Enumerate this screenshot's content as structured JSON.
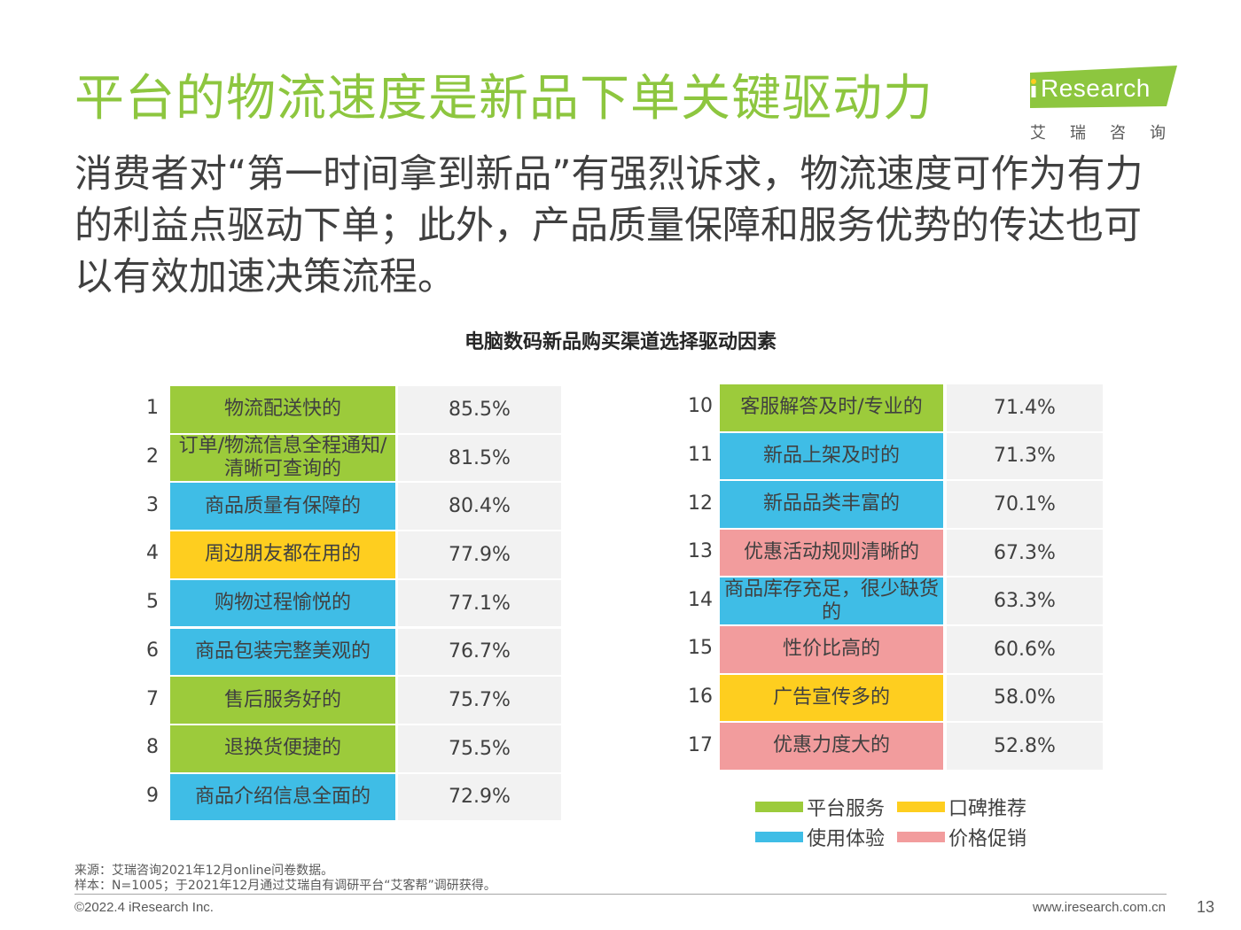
{
  "slide": {
    "title": "平台的物流速度是新品下单关键驱动力",
    "subtitle": "消费者对“第一时间拿到新品”有强烈诉求，物流速度可作为有力的利益点驱动下单；此外，产品质量保障和服务优势的传达也可以有效加速决策流程。",
    "logo_text": "Research",
    "logo_cn": "艾瑞咨询"
  },
  "colors": {
    "title_green": "#8dc63f",
    "platform_service": "#9ccb3b",
    "word_of_mouth": "#fece1f",
    "user_experience": "#3fbde6",
    "price_promotion": "#f29c9d",
    "value_cell": "#f2f2f2"
  },
  "chart_data": {
    "type": "table",
    "title": "电脑数码新品购买渠道选择驱动因素",
    "rows": [
      {
        "rank": "1",
        "label": "物流配送快的",
        "value": "85.5%",
        "group": "platform_service"
      },
      {
        "rank": "2",
        "label": "订单/物流信息全程通知/清晰可查询的",
        "value": "81.5%",
        "group": "platform_service"
      },
      {
        "rank": "3",
        "label": "商品质量有保障的",
        "value": "80.4%",
        "group": "user_experience"
      },
      {
        "rank": "4",
        "label": "周边朋友都在用的",
        "value": "77.9%",
        "group": "word_of_mouth"
      },
      {
        "rank": "5",
        "label": "购物过程愉悦的",
        "value": "77.1%",
        "group": "user_experience"
      },
      {
        "rank": "6",
        "label": "商品包装完整美观的",
        "value": "76.7%",
        "group": "user_experience"
      },
      {
        "rank": "7",
        "label": "售后服务好的",
        "value": "75.7%",
        "group": "platform_service"
      },
      {
        "rank": "8",
        "label": "退换货便捷的",
        "value": "75.5%",
        "group": "platform_service"
      },
      {
        "rank": "9",
        "label": "商品介绍信息全面的",
        "value": "72.9%",
        "group": "user_experience"
      },
      {
        "rank": "10",
        "label": "客服解答及时/专业的",
        "value": "71.4%",
        "group": "platform_service"
      },
      {
        "rank": "11",
        "label": "新品上架及时的",
        "value": "71.3%",
        "group": "user_experience"
      },
      {
        "rank": "12",
        "label": "新品品类丰富的",
        "value": "70.1%",
        "group": "user_experience"
      },
      {
        "rank": "13",
        "label": "优惠活动规则清晰的",
        "value": "67.3%",
        "group": "price_promotion"
      },
      {
        "rank": "14",
        "label": "商品库存充足，很少缺货的",
        "value": "63.3%",
        "group": "user_experience"
      },
      {
        "rank": "15",
        "label": "性价比高的",
        "value": "60.6%",
        "group": "price_promotion"
      },
      {
        "rank": "16",
        "label": "广告宣传多的",
        "value": "58.0%",
        "group": "word_of_mouth"
      },
      {
        "rank": "17",
        "label": "优惠力度大的",
        "value": "52.8%",
        "group": "price_promotion"
      }
    ],
    "legend": [
      {
        "label": "平台服务",
        "group": "platform_service"
      },
      {
        "label": "口碑推荐",
        "group": "word_of_mouth"
      },
      {
        "label": "使用体验",
        "group": "user_experience"
      },
      {
        "label": "价格促销",
        "group": "price_promotion"
      }
    ]
  },
  "footnotes": {
    "source": "来源：艾瑞咨询2021年12月online问卷数据。",
    "sample": "样本：N=1005；于2021年12月通过艾瑞自有调研平台“艾客帮”调研获得。"
  },
  "footer": {
    "copyright": "©2022.4 iResearch Inc.",
    "website": "www.iresearch.com.cn",
    "page_number": "13"
  }
}
